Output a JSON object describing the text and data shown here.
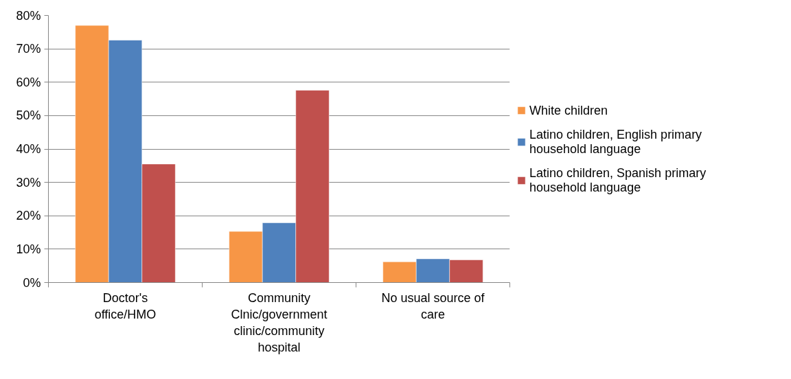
{
  "chart_data": {
    "type": "bar",
    "categories": [
      "Doctor's office/HMO",
      "Community Clnic/government clinic/community hospital",
      "No usual source of care"
    ],
    "series": [
      {
        "name": "White children",
        "color": "#f79646",
        "values": [
          77.0,
          15.3,
          6.2
        ]
      },
      {
        "name": "Latino children, English primary household language",
        "color": "#4f81bd",
        "values": [
          72.6,
          17.9,
          7.1
        ]
      },
      {
        "name": "Latino children, Spanish primary household language",
        "color": "#c0504d",
        "values": [
          35.5,
          57.6,
          6.8
        ]
      }
    ],
    "ylim": [
      0,
      80
    ],
    "yticks": [
      {
        "value": 0,
        "label": "0%"
      },
      {
        "value": 10,
        "label": "10%"
      },
      {
        "value": 20,
        "label": "20%"
      },
      {
        "value": 30,
        "label": "30%"
      },
      {
        "value": 40,
        "label": "40%"
      },
      {
        "value": 50,
        "label": "50%"
      },
      {
        "value": 60,
        "label": "60%"
      },
      {
        "value": 70,
        "label": "70%"
      },
      {
        "value": 80,
        "label": "80%"
      }
    ],
    "grid": "y",
    "legend": "right"
  }
}
